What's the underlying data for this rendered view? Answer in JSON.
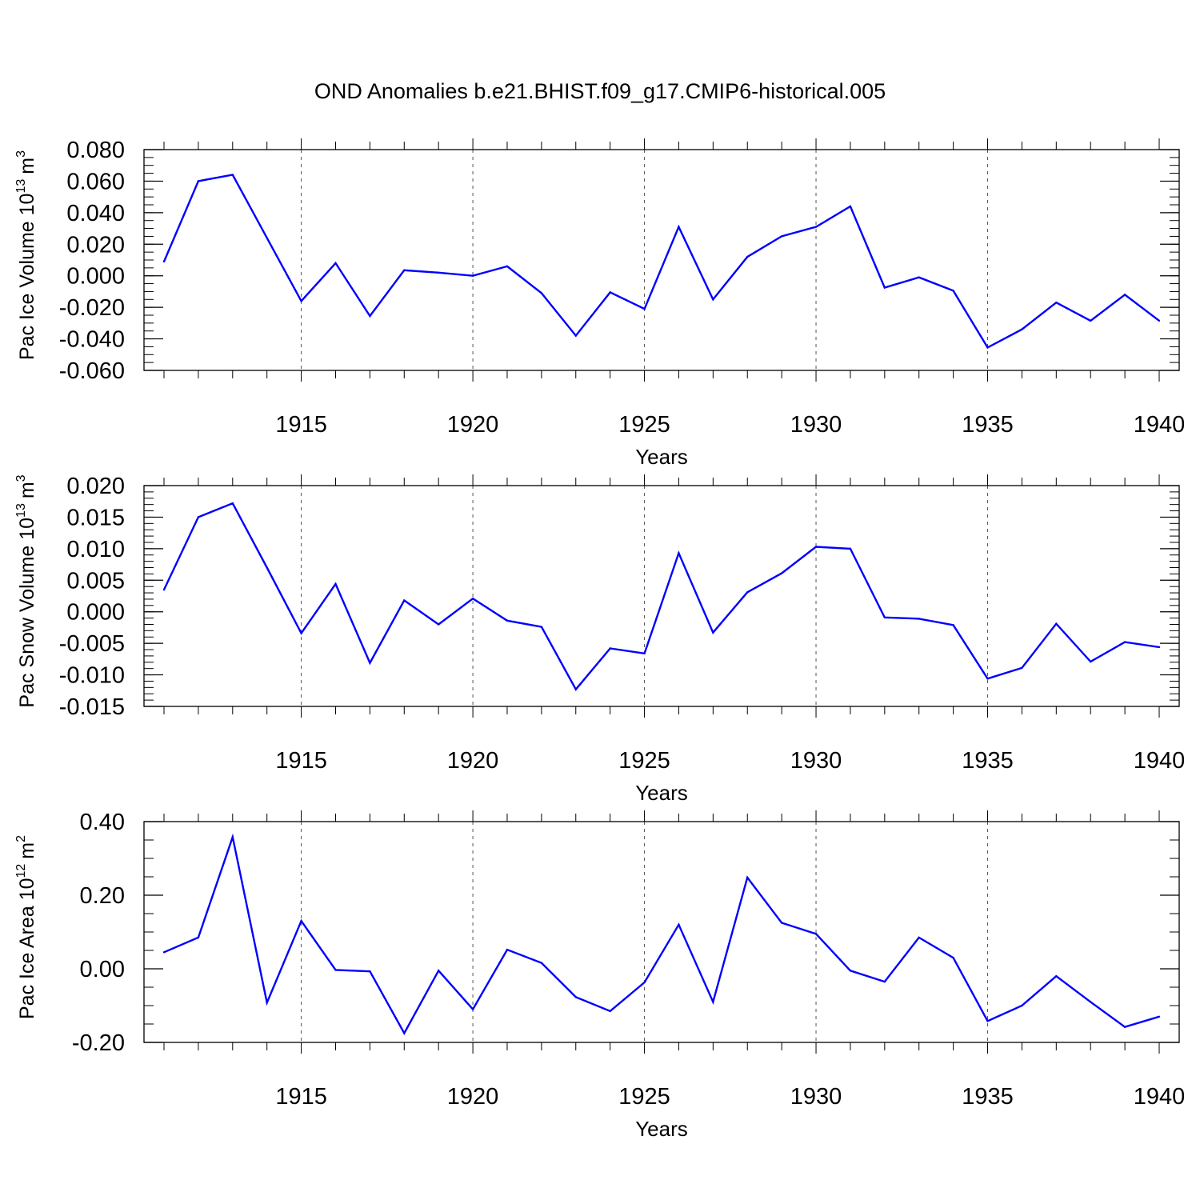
{
  "title": "OND Anomalies b.e21.BHIST.f09_g17.CMIP6-historical.005",
  "chart_data": [
    {
      "type": "line",
      "ylabel": "Pac Ice Volume",
      "yunit": {
        "base": "10",
        "exp": "13",
        "unit": "m",
        "unit_exp": "3"
      },
      "xlabel": "Years",
      "xlim": [
        1911,
        1940
      ],
      "ylim": [
        -0.06,
        0.08
      ],
      "yticks": [
        -0.06,
        -0.04,
        -0.02,
        0.0,
        0.02,
        0.04,
        0.06,
        0.08
      ],
      "ytick_labels": [
        "-0.060",
        "-0.040",
        "-0.020",
        "0.000",
        "0.020",
        "0.040",
        "0.060",
        "0.080"
      ],
      "yminor_step": 0.005,
      "xticks": [
        1915,
        1920,
        1925,
        1930,
        1935,
        1940
      ],
      "xtick_labels": [
        "1915",
        "1920",
        "1925",
        "1930",
        "1935",
        "1940"
      ],
      "grid": "dashed vertical at major x ticks",
      "line_color": "#0000ff",
      "x": [
        1911,
        1912,
        1913,
        1914,
        1915,
        1916,
        1917,
        1918,
        1919,
        1920,
        1921,
        1922,
        1923,
        1924,
        1925,
        1926,
        1927,
        1928,
        1929,
        1930,
        1931,
        1932,
        1933,
        1934,
        1935,
        1936,
        1937,
        1938,
        1939,
        1940
      ],
      "values": [
        0.009,
        0.06,
        0.064,
        0.024,
        -0.016,
        0.008,
        -0.0255,
        0.0035,
        0.002,
        0.0,
        0.006,
        -0.011,
        -0.038,
        -0.0105,
        -0.021,
        0.031,
        -0.015,
        0.012,
        0.025,
        0.031,
        0.044,
        -0.0075,
        -0.001,
        -0.0095,
        -0.0455,
        -0.034,
        -0.017,
        -0.0285,
        -0.012,
        -0.0285
      ]
    },
    {
      "type": "line",
      "ylabel": "Pac Snow Volume",
      "yunit": {
        "base": "10",
        "exp": "13",
        "unit": "m",
        "unit_exp": "3"
      },
      "xlabel": "Years",
      "xlim": [
        1911,
        1940
      ],
      "ylim": [
        -0.015,
        0.02
      ],
      "yticks": [
        -0.015,
        -0.01,
        -0.005,
        0.0,
        0.005,
        0.01,
        0.015,
        0.02
      ],
      "ytick_labels": [
        "-0.015",
        "-0.010",
        "-0.005",
        "0.000",
        "0.005",
        "0.010",
        "0.015",
        "0.020"
      ],
      "yminor_step": 0.001,
      "xticks": [
        1915,
        1920,
        1925,
        1930,
        1935,
        1940
      ],
      "xtick_labels": [
        "1915",
        "1920",
        "1925",
        "1930",
        "1935",
        "1940"
      ],
      "grid": "dashed vertical at major x ticks",
      "line_color": "#0000ff",
      "x": [
        1911,
        1912,
        1913,
        1914,
        1915,
        1916,
        1917,
        1918,
        1919,
        1920,
        1921,
        1922,
        1923,
        1924,
        1925,
        1926,
        1927,
        1928,
        1929,
        1930,
        1931,
        1932,
        1933,
        1934,
        1935,
        1936,
        1937,
        1938,
        1939,
        1940
      ],
      "values": [
        0.0035,
        0.015,
        0.0172,
        0.007,
        -0.0034,
        0.0044,
        -0.0081,
        0.0018,
        -0.002,
        0.0021,
        -0.0014,
        -0.0024,
        -0.0123,
        -0.0058,
        -0.0066,
        0.0093,
        -0.0033,
        0.0031,
        0.0061,
        0.0103,
        0.01,
        -0.0009,
        -0.0011,
        -0.0021,
        -0.0106,
        -0.0089,
        -0.0019,
        -0.0079,
        -0.0048,
        -0.0056
      ]
    },
    {
      "type": "line",
      "ylabel": "Pac Ice Area",
      "yunit": {
        "base": "10",
        "exp": "12",
        "unit": "m",
        "unit_exp": "2"
      },
      "xlabel": "Years",
      "xlim": [
        1911,
        1940
      ],
      "ylim": [
        -0.2,
        0.4
      ],
      "yticks": [
        -0.2,
        0.0,
        0.2,
        0.4
      ],
      "ytick_labels": [
        "-0.20",
        "0.00",
        "0.20",
        "0.40"
      ],
      "yminor_step": 0.05,
      "xticks": [
        1915,
        1920,
        1925,
        1930,
        1935,
        1940
      ],
      "xtick_labels": [
        "1915",
        "1920",
        "1925",
        "1930",
        "1935",
        "1940"
      ],
      "grid": "dashed vertical at major x ticks",
      "line_color": "#0000ff",
      "x": [
        1911,
        1912,
        1913,
        1914,
        1915,
        1916,
        1917,
        1918,
        1919,
        1920,
        1921,
        1922,
        1923,
        1924,
        1925,
        1926,
        1927,
        1928,
        1929,
        1930,
        1931,
        1932,
        1933,
        1934,
        1935,
        1936,
        1937,
        1938,
        1939,
        1940
      ],
      "values": [
        0.045,
        0.085,
        0.358,
        -0.092,
        0.13,
        -0.003,
        -0.007,
        -0.175,
        -0.005,
        -0.11,
        0.052,
        0.016,
        -0.077,
        -0.115,
        -0.037,
        0.12,
        -0.09,
        0.248,
        0.125,
        0.095,
        -0.005,
        -0.035,
        0.085,
        0.03,
        -0.142,
        -0.1,
        -0.02,
        -0.09,
        -0.158,
        -0.13
      ]
    }
  ]
}
